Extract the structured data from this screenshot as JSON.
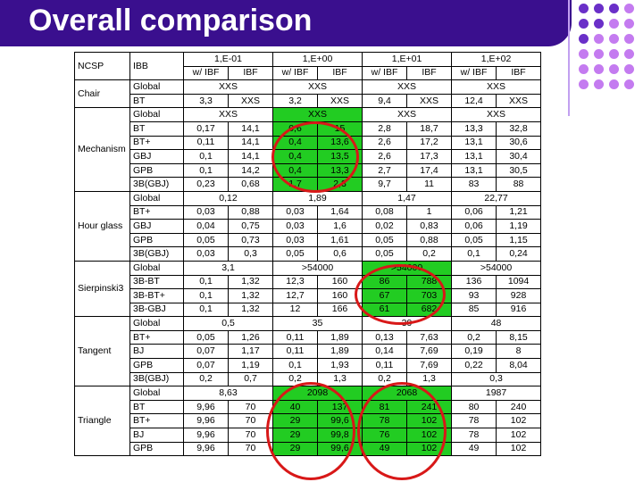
{
  "title": "Overall comparison",
  "colors": {
    "title_bar": "#3a0f8e",
    "dots_dark": "#6a2fc8",
    "dots_light": "#c47bf0",
    "highlight": "#22cc22",
    "ring": "#d81818"
  },
  "decoration": {
    "dots": [
      "dark",
      "dark",
      "dark",
      "light",
      "dark",
      "dark",
      "light",
      "light",
      "dark",
      "light",
      "light",
      "light",
      "light",
      "light",
      "light",
      "light",
      "light",
      "light",
      "light",
      "light",
      "light",
      "light",
      "light",
      "light"
    ]
  },
  "table": {
    "rows": [
      [
        {
          "t": "NCSP",
          "rs": 2,
          "a": "l"
        },
        {
          "t": "IBB",
          "rs": 2,
          "a": "l"
        },
        {
          "t": "1,E-01",
          "cs": 2
        },
        {
          "t": "1,E+00",
          "cs": 2
        },
        {
          "t": "1,E+01",
          "cs": 2
        },
        {
          "t": "1,E+02",
          "cs": 2
        }
      ],
      [
        {
          "t": "w/ IBF"
        },
        {
          "t": "IBF"
        },
        {
          "t": "w/ IBF"
        },
        {
          "t": "IBF"
        },
        {
          "t": "w/ IBF"
        },
        {
          "t": "IBF"
        },
        {
          "t": "w/ IBF"
        },
        {
          "t": "IBF"
        }
      ],
      [
        {
          "t": "Chair",
          "rs": 2,
          "a": "l"
        },
        {
          "t": "Global",
          "a": "l"
        },
        {
          "t": "XXS",
          "cs": 2
        },
        {
          "t": "XXS",
          "cs": 2
        },
        {
          "t": "XXS",
          "cs": 2
        },
        {
          "t": "XXS",
          "cs": 2
        }
      ],
      [
        {
          "t": "BT",
          "a": "l"
        },
        {
          "t": "3,3"
        },
        {
          "t": "XXS"
        },
        {
          "t": "3,2"
        },
        {
          "t": "XXS"
        },
        {
          "t": "9,4"
        },
        {
          "t": "XXS"
        },
        {
          "t": "12,4"
        },
        {
          "t": "XXS"
        }
      ],
      [
        {
          "t": "Mechanism",
          "rs": 6,
          "a": "l"
        },
        {
          "t": "Global",
          "a": "l"
        },
        {
          "t": "XXS",
          "cs": 2
        },
        {
          "t": "XXS",
          "cs": 2,
          "g": true
        },
        {
          "t": "XXS",
          "cs": 2
        },
        {
          "t": "XXS",
          "cs": 2
        }
      ],
      [
        {
          "t": "BT",
          "a": "l"
        },
        {
          "t": "0,17"
        },
        {
          "t": "14,1"
        },
        {
          "t": "0,6",
          "g": true
        },
        {
          "t": "15",
          "g": true
        },
        {
          "t": "2,8"
        },
        {
          "t": "18,7"
        },
        {
          "t": "13,3"
        },
        {
          "t": "32,8"
        }
      ],
      [
        {
          "t": "BT+",
          "a": "l"
        },
        {
          "t": "0,11"
        },
        {
          "t": "14,1"
        },
        {
          "t": "0,4",
          "g": true
        },
        {
          "t": "13,6",
          "g": true
        },
        {
          "t": "2,6"
        },
        {
          "t": "17,2"
        },
        {
          "t": "13,1"
        },
        {
          "t": "30,6"
        }
      ],
      [
        {
          "t": "GBJ",
          "a": "l"
        },
        {
          "t": "0,1"
        },
        {
          "t": "14,1"
        },
        {
          "t": "0,4",
          "g": true
        },
        {
          "t": "13,5",
          "g": true
        },
        {
          "t": "2,6"
        },
        {
          "t": "17,3"
        },
        {
          "t": "13,1"
        },
        {
          "t": "30,4"
        }
      ],
      [
        {
          "t": "GPB",
          "a": "l"
        },
        {
          "t": "0,1"
        },
        {
          "t": "14,2"
        },
        {
          "t": "0,4",
          "g": true
        },
        {
          "t": "13,3",
          "g": true
        },
        {
          "t": "2,7"
        },
        {
          "t": "17,4"
        },
        {
          "t": "13,1"
        },
        {
          "t": "30,5"
        }
      ],
      [
        {
          "t": "3B(GBJ)",
          "a": "l"
        },
        {
          "t": "0,23"
        },
        {
          "t": "0,68"
        },
        {
          "t": "1,7",
          "g": true
        },
        {
          "t": "2,3",
          "g": true
        },
        {
          "t": "9,7"
        },
        {
          "t": "11"
        },
        {
          "t": "83"
        },
        {
          "t": "88"
        }
      ],
      [
        {
          "t": "Hour glass",
          "rs": 5,
          "a": "l"
        },
        {
          "t": "Global",
          "a": "l"
        },
        {
          "t": "0,12",
          "cs": 2
        },
        {
          "t": "1,89",
          "cs": 2
        },
        {
          "t": "1,47",
          "cs": 2
        },
        {
          "t": "22,77",
          "cs": 2
        }
      ],
      [
        {
          "t": "BT+",
          "a": "l"
        },
        {
          "t": "0,03"
        },
        {
          "t": "0,88"
        },
        {
          "t": "0,03"
        },
        {
          "t": "1,64"
        },
        {
          "t": "0,08"
        },
        {
          "t": "1"
        },
        {
          "t": "0,06"
        },
        {
          "t": "1,21"
        }
      ],
      [
        {
          "t": "GBJ",
          "a": "l"
        },
        {
          "t": "0,04"
        },
        {
          "t": "0,75"
        },
        {
          "t": "0,03"
        },
        {
          "t": "1,6"
        },
        {
          "t": "0,02"
        },
        {
          "t": "0,83"
        },
        {
          "t": "0,06"
        },
        {
          "t": "1,19"
        }
      ],
      [
        {
          "t": "GPB",
          "a": "l"
        },
        {
          "t": "0,05"
        },
        {
          "t": "0,73"
        },
        {
          "t": "0,03"
        },
        {
          "t": "1,61"
        },
        {
          "t": "0,05"
        },
        {
          "t": "0,88"
        },
        {
          "t": "0,05"
        },
        {
          "t": "1,15"
        }
      ],
      [
        {
          "t": "3B(GBJ)",
          "a": "l"
        },
        {
          "t": "0,03"
        },
        {
          "t": "0,3"
        },
        {
          "t": "0,05"
        },
        {
          "t": "0,6"
        },
        {
          "t": "0,05"
        },
        {
          "t": "0,2"
        },
        {
          "t": "0,1"
        },
        {
          "t": "0,24"
        }
      ],
      [
        {
          "t": "Sierpinski3",
          "rs": 4,
          "a": "l"
        },
        {
          "t": "Global",
          "a": "l"
        },
        {
          "t": "3,1",
          "cs": 2
        },
        {
          "t": ">54000",
          "cs": 2
        },
        {
          "t": ">54000",
          "cs": 2,
          "g": true
        },
        {
          "t": ">54000",
          "cs": 2
        }
      ],
      [
        {
          "t": "3B-BT",
          "a": "l"
        },
        {
          "t": "0,1"
        },
        {
          "t": "1,32"
        },
        {
          "t": "12,3"
        },
        {
          "t": "160"
        },
        {
          "t": "86",
          "g": true
        },
        {
          "t": "788",
          "g": true
        },
        {
          "t": "136"
        },
        {
          "t": "1094"
        }
      ],
      [
        {
          "t": "3B-BT+",
          "a": "l"
        },
        {
          "t": "0,1"
        },
        {
          "t": "1,32"
        },
        {
          "t": "12,7"
        },
        {
          "t": "160"
        },
        {
          "t": "67",
          "g": true
        },
        {
          "t": "703",
          "g": true
        },
        {
          "t": "93"
        },
        {
          "t": "928"
        }
      ],
      [
        {
          "t": "3B-GBJ",
          "a": "l"
        },
        {
          "t": "0,1"
        },
        {
          "t": "1,32"
        },
        {
          "t": "12"
        },
        {
          "t": "166"
        },
        {
          "t": "61",
          "g": true
        },
        {
          "t": "682",
          "g": true
        },
        {
          "t": "85"
        },
        {
          "t": "916"
        }
      ],
      [
        {
          "t": "Tangent",
          "rs": 5,
          "a": "l"
        },
        {
          "t": "Global",
          "a": "l"
        },
        {
          "t": "0,5",
          "cs": 2
        },
        {
          "t": "35",
          "cs": 2
        },
        {
          "t": "39",
          "cs": 2
        },
        {
          "t": "48",
          "cs": 2
        }
      ],
      [
        {
          "t": "BT+",
          "a": "l"
        },
        {
          "t": "0,05"
        },
        {
          "t": "1,26"
        },
        {
          "t": "0,11"
        },
        {
          "t": "1,89"
        },
        {
          "t": "0,13"
        },
        {
          "t": "7,63"
        },
        {
          "t": "0,2"
        },
        {
          "t": "8,15"
        }
      ],
      [
        {
          "t": "BJ",
          "a": "l"
        },
        {
          "t": "0,07"
        },
        {
          "t": "1,17"
        },
        {
          "t": "0,11"
        },
        {
          "t": "1,89"
        },
        {
          "t": "0,14"
        },
        {
          "t": "7,69"
        },
        {
          "t": "0,19"
        },
        {
          "t": "8"
        }
      ],
      [
        {
          "t": "GPB",
          "a": "l"
        },
        {
          "t": "0,07"
        },
        {
          "t": "1,19"
        },
        {
          "t": "0,1"
        },
        {
          "t": "1,93"
        },
        {
          "t": "0,11"
        },
        {
          "t": "7,69"
        },
        {
          "t": "0,22"
        },
        {
          "t": "8,04"
        }
      ],
      [
        {
          "t": "3B(GBJ)",
          "a": "l"
        },
        {
          "t": "0,2"
        },
        {
          "t": "0,7"
        },
        {
          "t": "0,2"
        },
        {
          "t": "1,3"
        },
        {
          "t": "0,2"
        },
        {
          "t": "1,3"
        },
        {
          "t": "0,3",
          "cs": 2
        }
      ],
      [
        {
          "t": "Triangle",
          "rs": 5,
          "a": "l"
        },
        {
          "t": "Global",
          "a": "l"
        },
        {
          "t": "8,63",
          "cs": 2
        },
        {
          "t": "2098",
          "cs": 2,
          "g": true
        },
        {
          "t": "2068",
          "cs": 2,
          "g": true
        },
        {
          "t": "1987",
          "cs": 2
        }
      ],
      [
        {
          "t": "BT",
          "a": "l"
        },
        {
          "t": "9,96"
        },
        {
          "t": "70"
        },
        {
          "t": "40",
          "g": true
        },
        {
          "t": "137",
          "g": true
        },
        {
          "t": "81",
          "g": true
        },
        {
          "t": "241",
          "g": true
        },
        {
          "t": "80"
        },
        {
          "t": "240"
        }
      ],
      [
        {
          "t": "BT+",
          "a": "l"
        },
        {
          "t": "9,96"
        },
        {
          "t": "70"
        },
        {
          "t": "29",
          "g": true
        },
        {
          "t": "99,6",
          "g": true
        },
        {
          "t": "78",
          "g": true
        },
        {
          "t": "102",
          "g": true
        },
        {
          "t": "78"
        },
        {
          "t": "102"
        }
      ],
      [
        {
          "t": "BJ",
          "a": "l"
        },
        {
          "t": "9,96"
        },
        {
          "t": "70"
        },
        {
          "t": "29",
          "g": true
        },
        {
          "t": "99,8",
          "g": true
        },
        {
          "t": "76",
          "g": true
        },
        {
          "t": "102",
          "g": true
        },
        {
          "t": "78"
        },
        {
          "t": "102"
        }
      ],
      [
        {
          "t": "GPB",
          "a": "l"
        },
        {
          "t": "9,96"
        },
        {
          "t": "70"
        },
        {
          "t": "29",
          "g": true
        },
        {
          "t": "99,6",
          "g": true
        },
        {
          "t": "49",
          "g": true
        },
        {
          "t": "102",
          "g": true
        },
        {
          "t": "49"
        },
        {
          "t": "102"
        }
      ]
    ]
  }
}
